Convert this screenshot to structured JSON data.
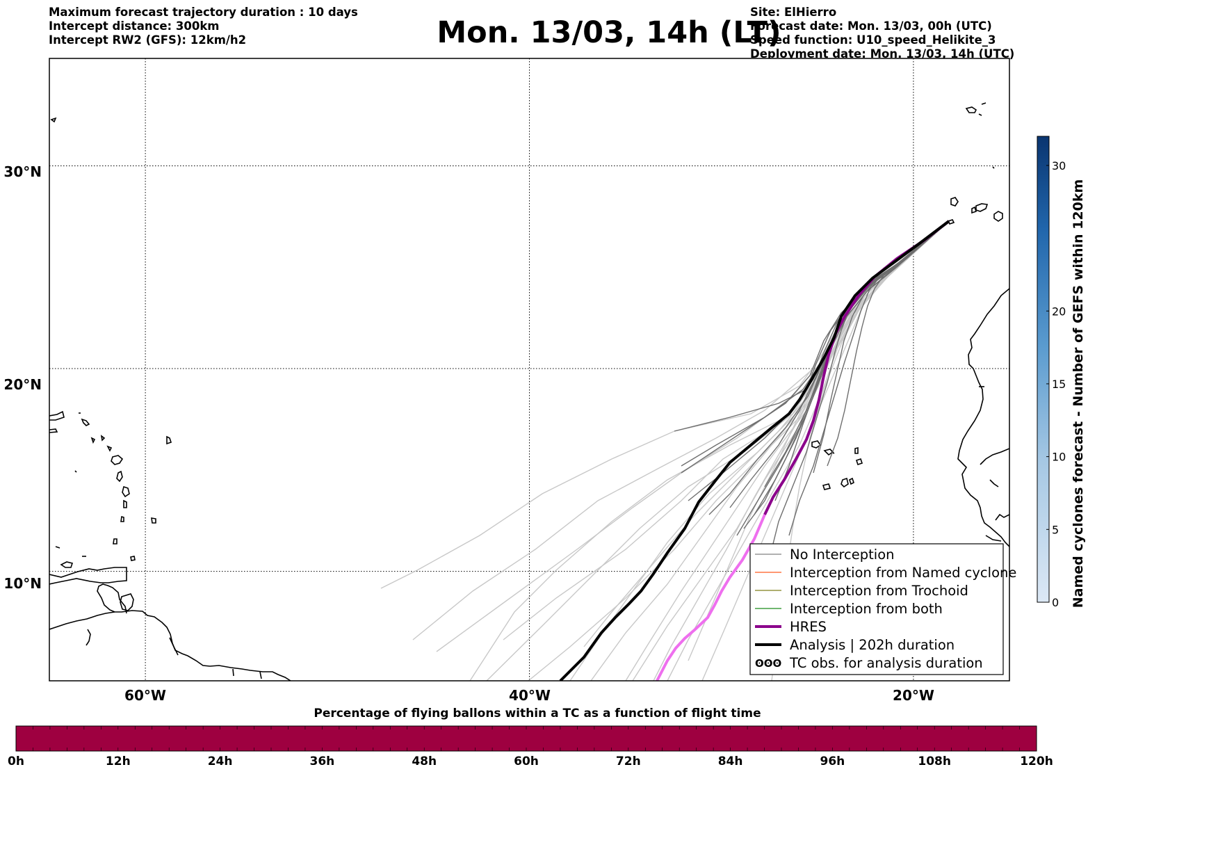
{
  "header": {
    "left_lines": [
      "Maximum forecast trajectory duration : 10 days",
      "Intercept distance: 300km",
      "Intercept RW2 (GFS):  12km/h2"
    ],
    "title": "Mon. 13/03, 14h (LT)",
    "right_lines": [
      "Site: ElHierro",
      "Forecast date: Mon. 13/03, 00h (UTC)",
      "Speed function: U10_speed_Helikite_3",
      "Deployment date: Mon. 13/03, 14h (UTC)"
    ]
  },
  "map": {
    "lat_labels": [
      "30°N",
      "20°N",
      "10°N"
    ],
    "lon_labels": [
      "60°W",
      "40°W",
      "20°W"
    ],
    "lat_values": [
      30,
      20,
      10
    ],
    "lon_values": [
      -60,
      -40,
      -20
    ],
    "extent": {
      "lon_min": -65,
      "lon_max": -15,
      "lat_min": 4.6,
      "lat_max": 35.3
    }
  },
  "legend": {
    "items": [
      {
        "label": "No Interception",
        "color": "#808080",
        "style": "thin"
      },
      {
        "label": "Interception from Named cyclone",
        "color": "#ff5a1e",
        "style": "thin"
      },
      {
        "label": "Interception from Trochoid",
        "color": "#7f7f1a",
        "style": "thin"
      },
      {
        "label": "Interception from both",
        "color": "#1a8c1a",
        "style": "thin"
      },
      {
        "label": "HRES",
        "color": "#8b008b",
        "style": "thick"
      },
      {
        "label": "Analysis | 202h duration",
        "color": "#000000",
        "style": "thick"
      },
      {
        "label": "TC obs. for analysis duration",
        "color": "#000000",
        "style": "symbol"
      }
    ]
  },
  "colorbar": {
    "title": "Named cyclones forecast - Number of GEFS within 120km",
    "ticks": [
      "0",
      "5",
      "10",
      "15",
      "20",
      "30"
    ],
    "tick_values": [
      0,
      5,
      10,
      15,
      20,
      30
    ],
    "range": [
      0,
      32
    ],
    "color_low": "#dce8f5",
    "color_high": "#0a3570"
  },
  "bottom_bar": {
    "title": "Percentage of flying ballons within a TC as a function of flight time",
    "hours": [
      "0h",
      "12h",
      "24h",
      "36h",
      "48h",
      "60h",
      "72h",
      "84h",
      "96h",
      "108h",
      "120h"
    ],
    "fill_color": "#9e0040"
  }
}
